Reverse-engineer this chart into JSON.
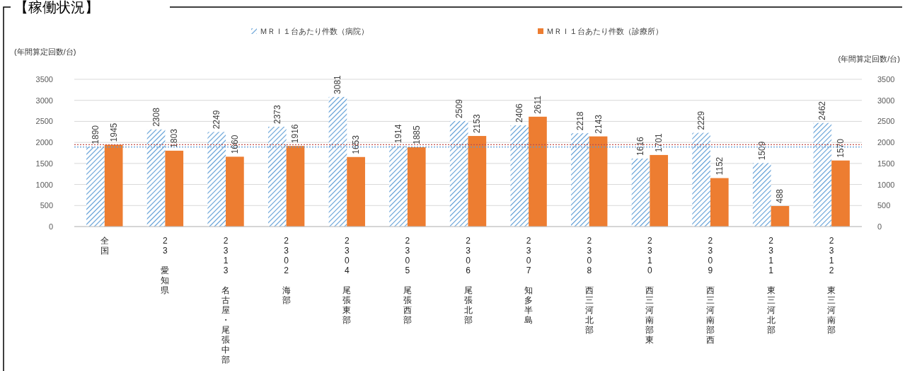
{
  "chart_data": {
    "type": "bar",
    "title": "【稼働状況】",
    "ylabel": "(年間算定回数/台)",
    "y2label": "(年間算定回数/台)",
    "categories": [
      "全国",
      "23 愛知県",
      "2313 名古屋・尾張中部",
      "2302 海部",
      "2304 尾張東部",
      "2305 尾張西部",
      "2306 尾張北部",
      "2307 知多半島",
      "2308 西三河北部",
      "2310 西三河南部東",
      "2309 西三河南部西",
      "2311 東三河北部",
      "2312 東三河南部"
    ],
    "series": [
      {
        "name": "ＭＲＩ１台あたり件数（病院）",
        "color": "#5b9bd5",
        "values": [
          1890,
          2308,
          2249,
          2373,
          3081,
          1914,
          2509,
          2406,
          2218,
          1616,
          2229,
          1509,
          2462
        ]
      },
      {
        "name": "ＭＲＩ１台あたり件数（診療所）",
        "color": "#ed7d31",
        "values": [
          1945,
          1803,
          1660,
          1916,
          1653,
          1885,
          2153,
          2611,
          2143,
          1701,
          1152,
          488,
          1570
        ]
      }
    ],
    "ylim": [
      0,
      3500
    ],
    "yticks": [
      0,
      500,
      1000,
      1500,
      2000,
      2500,
      3000,
      3500
    ],
    "y2lim": [
      0,
      3500
    ],
    "y2ticks": [
      0,
      500,
      1000,
      1500,
      2000,
      2500,
      3000,
      3500
    ],
    "ref_lines": [
      {
        "axis": "y",
        "value": 1890,
        "color": "#5b9bd5",
        "line_style": "dotted"
      },
      {
        "axis": "y",
        "value": 1945,
        "color": "#c0504d",
        "line_style": "dotted"
      }
    ],
    "data_labels": true,
    "grid": "y",
    "legend": "top"
  }
}
